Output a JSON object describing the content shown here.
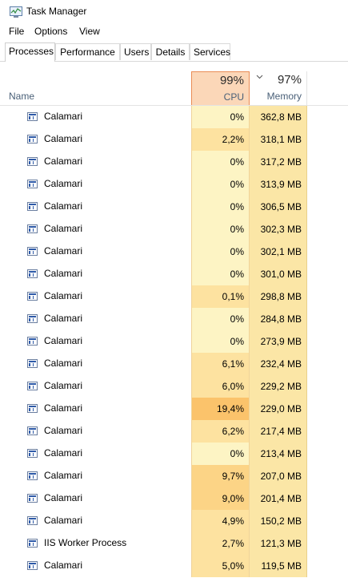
{
  "window": {
    "title": "Task Manager"
  },
  "menu": [
    "File",
    "Options",
    "View"
  ],
  "tabs": [
    {
      "label": "Processes",
      "active": true
    },
    {
      "label": "Performance",
      "active": false
    },
    {
      "label": "Users",
      "active": false
    },
    {
      "label": "Details",
      "active": false
    },
    {
      "label": "Services",
      "active": false
    }
  ],
  "columns": {
    "name": "Name",
    "cpu": {
      "label": "CPU",
      "percent": "99%"
    },
    "memory": {
      "label": "Memory",
      "percent": "97%"
    }
  },
  "colors": {
    "cpu_low": "#fdf4c4",
    "cpu_mid": "#fde2a0",
    "cpu_high": "#fbc36b",
    "memory_bg": "#fbe6a6",
    "cpu_header_bg": "#fbd7b8"
  },
  "processes": [
    {
      "name": "Calamari",
      "cpu": "0%",
      "memory": "362,8 MB",
      "cpu_level": "low"
    },
    {
      "name": "Calamari",
      "cpu": "2,2%",
      "memory": "318,1 MB",
      "cpu_level": "mid"
    },
    {
      "name": "Calamari",
      "cpu": "0%",
      "memory": "317,2 MB",
      "cpu_level": "low"
    },
    {
      "name": "Calamari",
      "cpu": "0%",
      "memory": "313,9 MB",
      "cpu_level": "low"
    },
    {
      "name": "Calamari",
      "cpu": "0%",
      "memory": "306,5 MB",
      "cpu_level": "low"
    },
    {
      "name": "Calamari",
      "cpu": "0%",
      "memory": "302,3 MB",
      "cpu_level": "low"
    },
    {
      "name": "Calamari",
      "cpu": "0%",
      "memory": "302,1 MB",
      "cpu_level": "low"
    },
    {
      "name": "Calamari",
      "cpu": "0%",
      "memory": "301,0 MB",
      "cpu_level": "low"
    },
    {
      "name": "Calamari",
      "cpu": "0,1%",
      "memory": "298,8 MB",
      "cpu_level": "mid"
    },
    {
      "name": "Calamari",
      "cpu": "0%",
      "memory": "284,8 MB",
      "cpu_level": "low"
    },
    {
      "name": "Calamari",
      "cpu": "0%",
      "memory": "273,9 MB",
      "cpu_level": "low"
    },
    {
      "name": "Calamari",
      "cpu": "6,1%",
      "memory": "232,4 MB",
      "cpu_level": "mid"
    },
    {
      "name": "Calamari",
      "cpu": "6,0%",
      "memory": "229,2 MB",
      "cpu_level": "mid"
    },
    {
      "name": "Calamari",
      "cpu": "19,4%",
      "memory": "229,0 MB",
      "cpu_level": "high"
    },
    {
      "name": "Calamari",
      "cpu": "6,2%",
      "memory": "217,4 MB",
      "cpu_level": "mid"
    },
    {
      "name": "Calamari",
      "cpu": "0%",
      "memory": "213,4 MB",
      "cpu_level": "low"
    },
    {
      "name": "Calamari",
      "cpu": "9,7%",
      "memory": "207,0 MB",
      "cpu_level": "midhigh"
    },
    {
      "name": "Calamari",
      "cpu": "9,0%",
      "memory": "201,4 MB",
      "cpu_level": "midhigh"
    },
    {
      "name": "Calamari",
      "cpu": "4,9%",
      "memory": "150,2 MB",
      "cpu_level": "mid"
    },
    {
      "name": "IIS Worker Process",
      "cpu": "2,7%",
      "memory": "121,3 MB",
      "cpu_level": "mid"
    },
    {
      "name": "Calamari",
      "cpu": "5,0%",
      "memory": "119,5 MB",
      "cpu_level": "mid"
    }
  ]
}
